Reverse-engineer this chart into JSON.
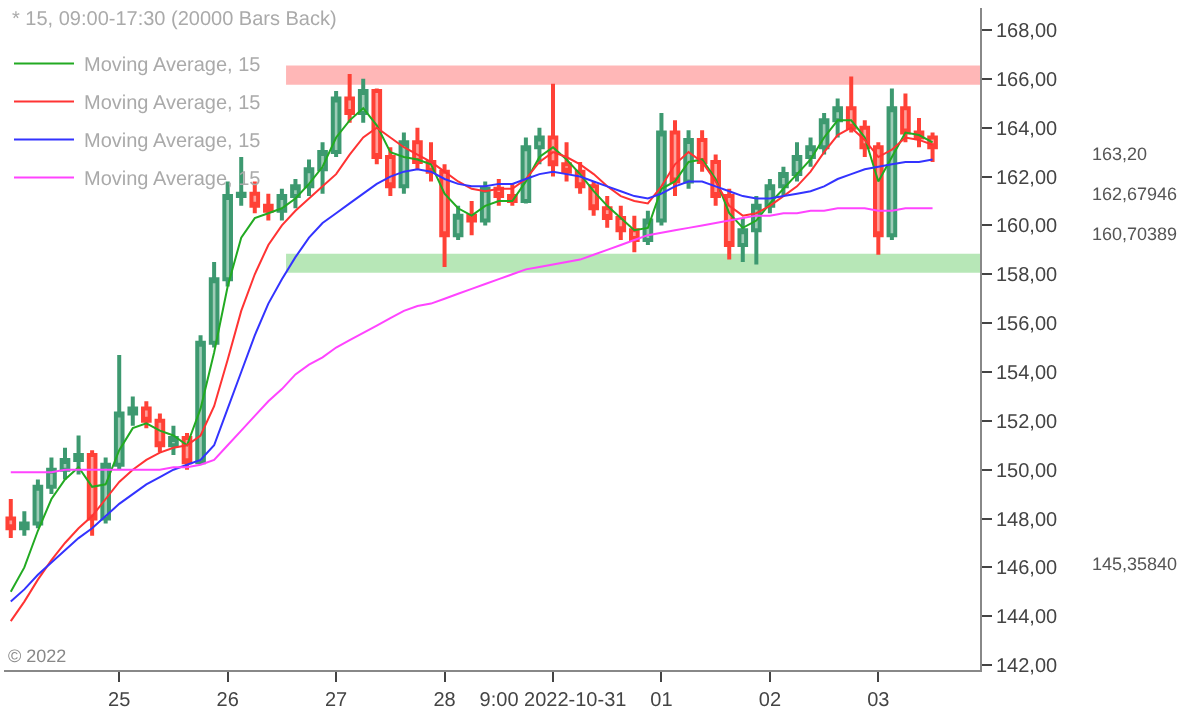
{
  "chart_data": {
    "type": "candlestick",
    "title": "* 15, 09:00-17:30 (20000 Bars Back)",
    "categories": [
      null,
      null,
      null,
      null,
      null,
      null,
      null,
      null,
      "25",
      null,
      null,
      null,
      null,
      null,
      null,
      null,
      "26",
      null,
      null,
      null,
      null,
      null,
      null,
      null,
      "27",
      null,
      null,
      null,
      null,
      null,
      null,
      null,
      "28",
      null,
      null,
      null,
      null,
      null,
      null,
      null,
      "9:00 2022-10-31",
      null,
      null,
      null,
      null,
      null,
      null,
      null,
      "01",
      null,
      null,
      null,
      null,
      null,
      null,
      null,
      "02",
      null,
      null,
      null,
      null,
      null,
      null,
      null,
      "03",
      null,
      null,
      null,
      null
    ],
    "ohlc": [
      [
        148,
        148.8,
        147.2,
        147.6
      ],
      [
        147.6,
        148.3,
        147.3,
        147.8
      ],
      [
        147.8,
        149.6,
        147.6,
        149.3
      ],
      [
        149.3,
        150.5,
        149,
        150
      ],
      [
        150,
        150.9,
        149.6,
        150.4
      ],
      [
        150.4,
        151.4,
        149.8,
        150.6
      ],
      [
        150.6,
        150.8,
        147.3,
        148
      ],
      [
        148,
        150.5,
        147.8,
        150.2
      ],
      [
        150.2,
        154.7,
        150,
        152.3
      ],
      [
        152.3,
        153,
        151.8,
        152.5
      ],
      [
        152.5,
        152.8,
        151.7,
        152
      ],
      [
        152,
        152.3,
        150.7,
        151
      ],
      [
        151,
        151.8,
        150.6,
        151.3
      ],
      [
        151.3,
        151.5,
        150,
        150.3
      ],
      [
        150.3,
        155.5,
        150.2,
        155.2
      ],
      [
        155.2,
        158.5,
        155,
        157.8
      ],
      [
        157.8,
        161.8,
        157.5,
        161.2
      ],
      [
        161.2,
        162.8,
        160.8,
        161.3
      ],
      [
        161.3,
        161.8,
        160.5,
        160.8
      ],
      [
        160.8,
        161.3,
        160.2,
        160.6
      ],
      [
        160.6,
        161.5,
        160.2,
        161.2
      ],
      [
        161.2,
        161.9,
        160.7,
        161.6
      ],
      [
        161.6,
        162.7,
        161.2,
        162.3
      ],
      [
        162.3,
        163.4,
        161.3,
        163
      ],
      [
        163,
        165.5,
        162.8,
        165.2
      ],
      [
        165.2,
        166.2,
        164.2,
        164.6
      ],
      [
        164.6,
        166,
        164.2,
        165.5
      ],
      [
        165.5,
        165.6,
        162.5,
        162.8
      ],
      [
        162.8,
        163.2,
        161.2,
        161.6
      ],
      [
        161.6,
        163.8,
        161.3,
        163.4
      ],
      [
        163.4,
        164,
        162.3,
        162.6
      ],
      [
        162.6,
        163.4,
        161.8,
        162.2
      ],
      [
        162.2,
        162.5,
        158.3,
        159.6
      ],
      [
        159.6,
        160.8,
        159.4,
        160.4
      ],
      [
        160.4,
        161,
        159.6,
        160.2
      ],
      [
        160.2,
        161.8,
        160,
        161.5
      ],
      [
        161.5,
        161.9,
        160.8,
        161.2
      ],
      [
        161.2,
        161.7,
        160.8,
        161
      ],
      [
        161,
        163.6,
        160.9,
        163.2
      ],
      [
        163.2,
        164,
        162.5,
        163.6
      ],
      [
        163.6,
        165.8,
        162,
        162.5
      ],
      [
        162.5,
        163.4,
        161.8,
        162.2
      ],
      [
        162.2,
        162.6,
        161.3,
        161.6
      ],
      [
        161.6,
        161.8,
        160.4,
        160.7
      ],
      [
        160.7,
        161.2,
        159.9,
        160.3
      ],
      [
        160.3,
        160.8,
        159.4,
        159.8
      ],
      [
        159.8,
        160.4,
        158.9,
        159.4
      ],
      [
        159.4,
        160.6,
        159.2,
        160.2
      ],
      [
        160.2,
        164.6,
        160,
        163.8
      ],
      [
        163.8,
        164.3,
        161.2,
        161.8
      ],
      [
        161.8,
        163.9,
        161.5,
        163.5
      ],
      [
        163.5,
        163.9,
        162.2,
        162.6
      ],
      [
        162.6,
        162.9,
        160.8,
        161.2
      ],
      [
        161.2,
        161.5,
        158.6,
        159.2
      ],
      [
        159.2,
        160.3,
        158.5,
        159.8
      ],
      [
        159.8,
        161.2,
        158.4,
        160.8
      ],
      [
        160.8,
        161.9,
        160.5,
        161.6
      ],
      [
        161.6,
        162.4,
        161.2,
        162.1
      ],
      [
        162.1,
        163.4,
        161.8,
        162.8
      ],
      [
        162.8,
        163.6,
        162.4,
        163.2
      ],
      [
        163.2,
        164.6,
        162.9,
        164.3
      ],
      [
        164.3,
        165.2,
        163.6,
        164.8
      ],
      [
        164.8,
        166.1,
        163.8,
        164
      ],
      [
        164,
        164.3,
        162.8,
        163.2
      ],
      [
        163.2,
        163.4,
        158.8,
        159.6
      ],
      [
        159.6,
        165.6,
        159.4,
        164.8
      ],
      [
        164.8,
        165.4,
        163.4,
        163.8
      ],
      [
        163.8,
        164.4,
        163.2,
        163.6
      ],
      [
        163.6,
        163.8,
        162.6,
        163.2
      ]
    ],
    "series": [
      {
        "type": "line",
        "name": "Moving Average, 15",
        "color": "#22aa22",
        "values": [
          145,
          146,
          147.5,
          148.8,
          149.6,
          150.1,
          149.3,
          149.4,
          150.8,
          151.7,
          151.9,
          151.6,
          151.4,
          151,
          152.5,
          154.8,
          157.5,
          159.5,
          160.3,
          160.5,
          160.7,
          161.1,
          161.7,
          162.4,
          163.6,
          164.3,
          164.8,
          164.1,
          163,
          162.8,
          162.7,
          162.5,
          161.3,
          160.7,
          160.4,
          160.8,
          161,
          161,
          161.8,
          162.8,
          163.2,
          162.7,
          162.1,
          161.4,
          160.8,
          160.3,
          159.8,
          159.9,
          161.5,
          161.8,
          162.6,
          162.7,
          161.9,
          160.5,
          159.9,
          160.2,
          160.9,
          161.5,
          162.1,
          162.7,
          163.6,
          164.3,
          164.3,
          163.6,
          161.8,
          162.8,
          163.8,
          163.7,
          163.4
        ]
      },
      {
        "type": "line",
        "name": "Moving Average, 15",
        "color": "#ff3333",
        "values": [
          143.8,
          144.6,
          145.5,
          146.3,
          147,
          147.6,
          148.1,
          148.8,
          149.5,
          150,
          150.4,
          150.7,
          150.9,
          151,
          151.4,
          152.6,
          154.5,
          156.5,
          158,
          159.2,
          160,
          160.6,
          161.1,
          161.6,
          162.1,
          162.9,
          163.6,
          164,
          163.6,
          163.2,
          162.9,
          162.6,
          162.2,
          161.8,
          161.5,
          161.4,
          161.5,
          161.5,
          161.9,
          162.6,
          163,
          162.8,
          162.5,
          162.1,
          161.6,
          161.2,
          161,
          160.9,
          161.6,
          162.5,
          163,
          162.6,
          161.8,
          160.8,
          160.4,
          160.5,
          160.8,
          161.2,
          161.6,
          162.2,
          163,
          163.7,
          164,
          163.5,
          162.8,
          163.1,
          163.6,
          163.5,
          163.3
        ]
      },
      {
        "type": "line",
        "name": "Moving Average, 15",
        "color": "#3333ff",
        "values": [
          144.6,
          145.1,
          145.7,
          146.2,
          146.7,
          147.2,
          147.6,
          148.1,
          148.6,
          149,
          149.4,
          149.7,
          150,
          150.2,
          150.4,
          151,
          152.5,
          154,
          155.5,
          156.8,
          157.8,
          158.7,
          159.5,
          160.1,
          160.5,
          160.9,
          161.3,
          161.7,
          162,
          162.2,
          162.3,
          162.2,
          161.9,
          161.7,
          161.6,
          161.6,
          161.7,
          161.7,
          161.9,
          162.1,
          162.2,
          162.1,
          162,
          161.8,
          161.6,
          161.4,
          161.2,
          161.1,
          161.3,
          161.6,
          161.8,
          161.8,
          161.6,
          161.4,
          161.2,
          161.1,
          161.1,
          161.2,
          161.3,
          161.4,
          161.6,
          161.9,
          162.1,
          162.3,
          162.4,
          162.5,
          162.6,
          162.6,
          162.7
        ]
      },
      {
        "type": "line",
        "name": "Moving Average, 15",
        "color": "#ff44ff",
        "values": [
          149.9,
          149.9,
          149.9,
          149.9,
          150,
          150,
          150,
          150,
          150,
          150,
          150,
          150,
          150.1,
          150.1,
          150.2,
          150.4,
          151,
          151.6,
          152.2,
          152.8,
          153.3,
          153.9,
          154.3,
          154.6,
          155,
          155.3,
          155.6,
          155.9,
          156.2,
          156.5,
          156.7,
          156.8,
          157,
          157.2,
          157.4,
          157.6,
          157.8,
          158,
          158.2,
          158.3,
          158.4,
          158.5,
          158.6,
          158.8,
          159,
          159.2,
          159.4,
          159.6,
          159.7,
          159.8,
          159.9,
          160,
          160.1,
          160.2,
          160.3,
          160.4,
          160.4,
          160.5,
          160.5,
          160.6,
          160.6,
          160.7,
          160.7,
          160.7,
          160.6,
          160.6,
          160.7,
          160.7,
          160.7
        ]
      }
    ],
    "bands": [
      {
        "axis": "y",
        "from": 165.8,
        "to": 166.5,
        "color": "#ff9999"
      },
      {
        "axis": "y",
        "from": 158.1,
        "to": 158.8,
        "color": "#99dd99"
      }
    ],
    "annotations": [
      "163,20",
      "162,67946",
      "160,70389",
      "145,35840",
      "© 2022"
    ],
    "ylim": [
      141.8,
      168.9
    ],
    "yticks": [
      {
        "value": 142,
        "label": "142,00"
      },
      {
        "value": 144,
        "label": "144,00"
      },
      {
        "value": 146,
        "label": "146,00"
      },
      {
        "value": 148,
        "label": "148,00"
      },
      {
        "value": 150,
        "label": "150,00"
      },
      {
        "value": 152,
        "label": "152,00"
      },
      {
        "value": 154,
        "label": "154,00"
      },
      {
        "value": 156,
        "label": "156,00"
      },
      {
        "value": 158,
        "label": "158,00"
      },
      {
        "value": 160,
        "label": "160,00"
      },
      {
        "value": 162,
        "label": "162,00"
      },
      {
        "value": 164,
        "label": "164,00"
      },
      {
        "value": 166,
        "label": "166,00"
      },
      {
        "value": 168,
        "label": "168,00"
      }
    ],
    "grid": false,
    "legend": "top left"
  }
}
